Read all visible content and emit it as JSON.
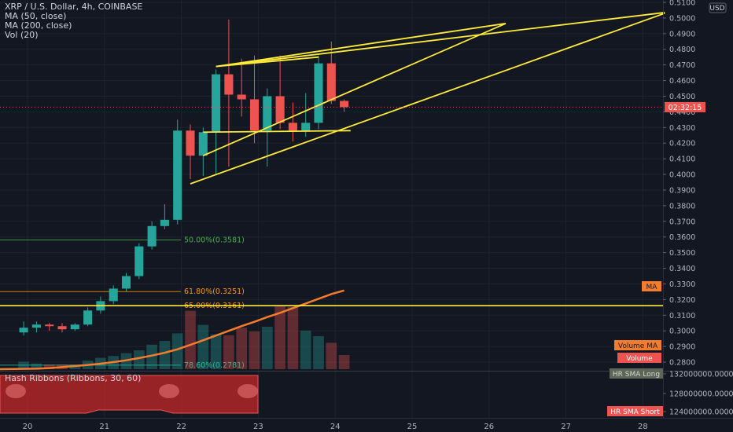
{
  "legend": {
    "symbol": "XRP / U.S. Dollar, 4h, COINBASE",
    "ma50": "MA (50, close)",
    "ma200": "MA (200, close)",
    "vol": "Vol (20)"
  },
  "currency": "USD",
  "countdown": "02:32:15",
  "price_ticks": [
    "0.5100",
    "0.5000",
    "0.4900",
    "0.4800",
    "0.4700",
    "0.4600",
    "0.4500",
    "0.4400",
    "0.4300",
    "0.4200",
    "0.4100",
    "0.4000",
    "0.3900",
    "0.3800",
    "0.3700",
    "0.3600",
    "0.3500",
    "0.3400",
    "0.3300",
    "0.3200",
    "0.3100",
    "0.3000",
    "0.2900",
    "0.2800"
  ],
  "indicator_ticks": [
    "132000000.0000",
    "128000000.0000",
    "124000000.0000"
  ],
  "badges": {
    "ma": "MA",
    "volume_ma": "Volume MA",
    "volume": "Volume",
    "hr_long": "HR SMA Long",
    "hr_short": "HR SMA Short"
  },
  "indicator_title": "Hash Ribbons (Ribbons, 30, 60)",
  "fib_labels": [
    "50.00%(0.3581)",
    "61.80%(0.3251)",
    "65.00%(0.3161)",
    "78.60%(0.2781)"
  ],
  "date_labels": [
    "20",
    "21",
    "22",
    "23",
    "24",
    "25",
    "26",
    "27",
    "28"
  ],
  "colors": {
    "background": "#131722",
    "up": "#26a69a",
    "down": "#ef5350",
    "drawing": "#ffeb3b",
    "ma": "#f57c2c",
    "fib50": "#4caf50",
    "fib618": "#ff9800",
    "fib786": "#26c6a0",
    "ribbon": "#c62828"
  },
  "chart_data": {
    "type": "candlestick",
    "y_range": [
      0.2745,
      0.5115
    ],
    "x_labels": [
      "20",
      "21",
      "22",
      "23",
      "24",
      "25",
      "26",
      "27",
      "28"
    ],
    "current_price": 0.443,
    "candles": [
      {
        "o": 0.299,
        "h": 0.306,
        "l": 0.297,
        "c": 0.302
      },
      {
        "o": 0.302,
        "h": 0.306,
        "l": 0.299,
        "c": 0.304
      },
      {
        "o": 0.304,
        "h": 0.305,
        "l": 0.3,
        "c": 0.303
      },
      {
        "o": 0.303,
        "h": 0.305,
        "l": 0.299,
        "c": 0.301
      },
      {
        "o": 0.301,
        "h": 0.305,
        "l": 0.3,
        "c": 0.304
      },
      {
        "o": 0.304,
        "h": 0.315,
        "l": 0.303,
        "c": 0.313
      },
      {
        "o": 0.313,
        "h": 0.322,
        "l": 0.311,
        "c": 0.319
      },
      {
        "o": 0.319,
        "h": 0.329,
        "l": 0.317,
        "c": 0.327
      },
      {
        "o": 0.327,
        "h": 0.337,
        "l": 0.325,
        "c": 0.335
      },
      {
        "o": 0.335,
        "h": 0.356,
        "l": 0.333,
        "c": 0.354
      },
      {
        "o": 0.354,
        "h": 0.37,
        "l": 0.352,
        "c": 0.367
      },
      {
        "o": 0.367,
        "h": 0.381,
        "l": 0.365,
        "c": 0.371
      },
      {
        "o": 0.371,
        "h": 0.435,
        "l": 0.368,
        "c": 0.428
      },
      {
        "o": 0.428,
        "h": 0.432,
        "l": 0.397,
        "c": 0.412
      },
      {
        "o": 0.412,
        "h": 0.43,
        "l": 0.399,
        "c": 0.427
      },
      {
        "o": 0.427,
        "h": 0.467,
        "l": 0.4,
        "c": 0.464
      },
      {
        "o": 0.464,
        "h": 0.499,
        "l": 0.405,
        "c": 0.451
      },
      {
        "o": 0.451,
        "h": 0.474,
        "l": 0.437,
        "c": 0.448
      },
      {
        "o": 0.448,
        "h": 0.476,
        "l": 0.42,
        "c": 0.428
      },
      {
        "o": 0.428,
        "h": 0.455,
        "l": 0.405,
        "c": 0.45
      },
      {
        "o": 0.45,
        "h": 0.476,
        "l": 0.429,
        "c": 0.433
      },
      {
        "o": 0.433,
        "h": 0.446,
        "l": 0.421,
        "c": 0.428
      },
      {
        "o": 0.428,
        "h": 0.452,
        "l": 0.424,
        "c": 0.433
      },
      {
        "o": 0.433,
        "h": 0.476,
        "l": 0.429,
        "c": 0.471
      },
      {
        "o": 0.471,
        "h": 0.485,
        "l": 0.445,
        "c": 0.447
      },
      {
        "o": 0.447,
        "h": 0.448,
        "l": 0.44,
        "c": 0.443
      }
    ],
    "volumes": [
      0.08,
      0.06,
      0.05,
      0.05,
      0.05,
      0.09,
      0.12,
      0.14,
      0.17,
      0.2,
      0.26,
      0.3,
      0.38,
      0.62,
      0.47,
      0.37,
      0.36,
      0.44,
      0.4,
      0.45,
      0.68,
      0.66,
      0.41,
      0.35,
      0.28,
      0.15
    ],
    "ma_values": [
      0.2755,
      0.2758,
      0.2762,
      0.2768,
      0.2775,
      0.2782,
      0.279,
      0.28,
      0.2812,
      0.2826,
      0.2842,
      0.286,
      0.2882,
      0.291,
      0.294,
      0.297,
      0.3,
      0.303,
      0.3058,
      0.3088,
      0.3115,
      0.3145,
      0.3175,
      0.3205,
      0.3235,
      0.3258
    ],
    "fib_levels": [
      0.3581,
      0.3251,
      0.3161,
      0.2781
    ],
    "horizontal_lines": [
      0.3161
    ],
    "drawings": [
      {
        "points": [
          [
            15,
            0.469
          ],
          [
            23,
            0.475
          ]
        ]
      },
      {
        "points": [
          [
            15,
            0.469
          ],
          [
            37.6,
            0.4965
          ]
        ]
      },
      {
        "points": [
          [
            14,
            0.412
          ],
          [
            37.6,
            0.4965
          ]
        ]
      },
      {
        "points": [
          [
            13,
            0.394
          ],
          [
            50,
            0.503
          ]
        ]
      },
      {
        "points": [
          [
            15,
            0.469
          ],
          [
            50,
            0.5035
          ]
        ]
      },
      {
        "points": [
          [
            14,
            0.427
          ],
          [
            25.5,
            0.428
          ]
        ]
      }
    ]
  }
}
